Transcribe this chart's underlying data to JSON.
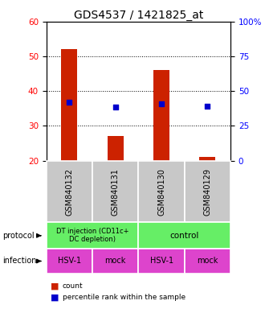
{
  "title": "GDS4537 / 1421825_at",
  "samples": [
    "GSM840132",
    "GSM840131",
    "GSM840130",
    "GSM840129"
  ],
  "bar_values": [
    52,
    27,
    46,
    21
  ],
  "percentile_values": [
    42,
    38.5,
    41,
    39
  ],
  "ylim_left": [
    20,
    60
  ],
  "ylim_right": [
    0,
    100
  ],
  "yticks_left": [
    20,
    30,
    40,
    50,
    60
  ],
  "yticks_right": [
    0,
    25,
    50,
    75,
    100
  ],
  "bar_color": "#cc2200",
  "percentile_color": "#0000cc",
  "protocol_labels": [
    "DT injection (CD11c+\nDC depletion)",
    "control"
  ],
  "protocol_colors": [
    "#66ee66",
    "#66ee66"
  ],
  "infection_labels": [
    "HSV-1",
    "mock",
    "HSV-1",
    "mock"
  ],
  "infection_color": "#dd44cc",
  "label_row_color": "#c8c8c8",
  "title_fontsize": 10,
  "tick_fontsize": 7.5,
  "sample_fontsize": 7,
  "bar_width": 0.35
}
